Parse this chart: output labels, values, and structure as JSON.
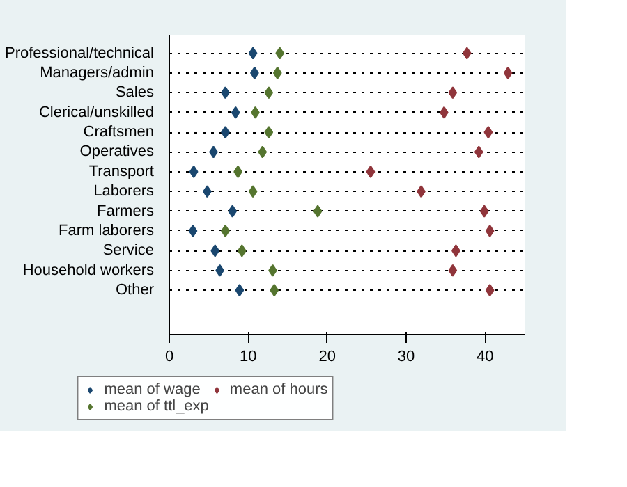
{
  "chart_data": {
    "type": "scatter",
    "marker": "diamond",
    "grid": "y",
    "legend": "bottom",
    "categories": [
      "Professional/technical",
      "Managers/admin",
      "Sales",
      "Clerical/unskilled",
      "Craftsmen",
      "Operatives",
      "Transport",
      "Laborers",
      "Farmers",
      "Farm laborers",
      "Service",
      "Household workers",
      "Other"
    ],
    "xlim": [
      0,
      45
    ],
    "xticks": [
      0,
      10,
      20,
      30,
      40
    ],
    "orientation": "horizontal",
    "series": [
      {
        "name": "mean of wage",
        "color": "#1a476f",
        "values": [
          10.6,
          10.8,
          7.1,
          8.4,
          7.1,
          5.6,
          3.1,
          4.8,
          8.0,
          3.0,
          5.8,
          6.4,
          8.9
        ]
      },
      {
        "name": "mean of ttl_exp",
        "color": "#55752f",
        "values": [
          14.0,
          13.7,
          12.6,
          10.9,
          12.6,
          11.8,
          8.7,
          10.6,
          18.8,
          7.1,
          9.2,
          13.1,
          13.3
        ]
      },
      {
        "name": "mean of hours",
        "color": "#90353b",
        "values": [
          37.7,
          42.9,
          35.9,
          34.8,
          40.4,
          39.2,
          25.5,
          31.9,
          39.9,
          40.6,
          36.3,
          35.9,
          40.6
        ]
      }
    ]
  }
}
